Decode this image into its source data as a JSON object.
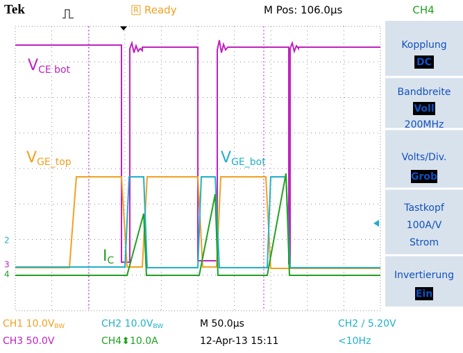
{
  "header": {
    "brand": "Tek",
    "status_icon": "R",
    "status": "Ready",
    "position": "M Pos: 106.0µs",
    "channel": "CH4"
  },
  "side_menu": [
    {
      "label": "Kopplung",
      "value": "DC"
    },
    {
      "label": "Bandbreite",
      "value": "Voll",
      "extra": "200MHz"
    },
    {
      "label": "Volts/Div.",
      "value": "Grob"
    },
    {
      "label": "Tastkopf",
      "extra": "100A/V",
      "extra2": "Strom"
    },
    {
      "label": "Invertierung",
      "value": "Ein"
    }
  ],
  "traces": [
    {
      "symbol": "V",
      "subscript": "CE bot"
    },
    {
      "symbol": "V",
      "subscript": "GE_top"
    },
    {
      "symbol": "V",
      "subscript": "GE_bot"
    },
    {
      "symbol": "I",
      "subscript": "C"
    }
  ],
  "markers": [
    "2",
    "3",
    "4"
  ],
  "footer": {
    "row1": [
      "CH1  10.0V",
      "BW",
      "CH2  10.0V",
      "BW",
      "M 50.0µs",
      "CH2 ∕ 5.20V"
    ],
    "row2": [
      "CH3  50.0V",
      "CH4⬍10.0A",
      "12-Apr-13 15:11",
      "<10Hz"
    ]
  }
}
